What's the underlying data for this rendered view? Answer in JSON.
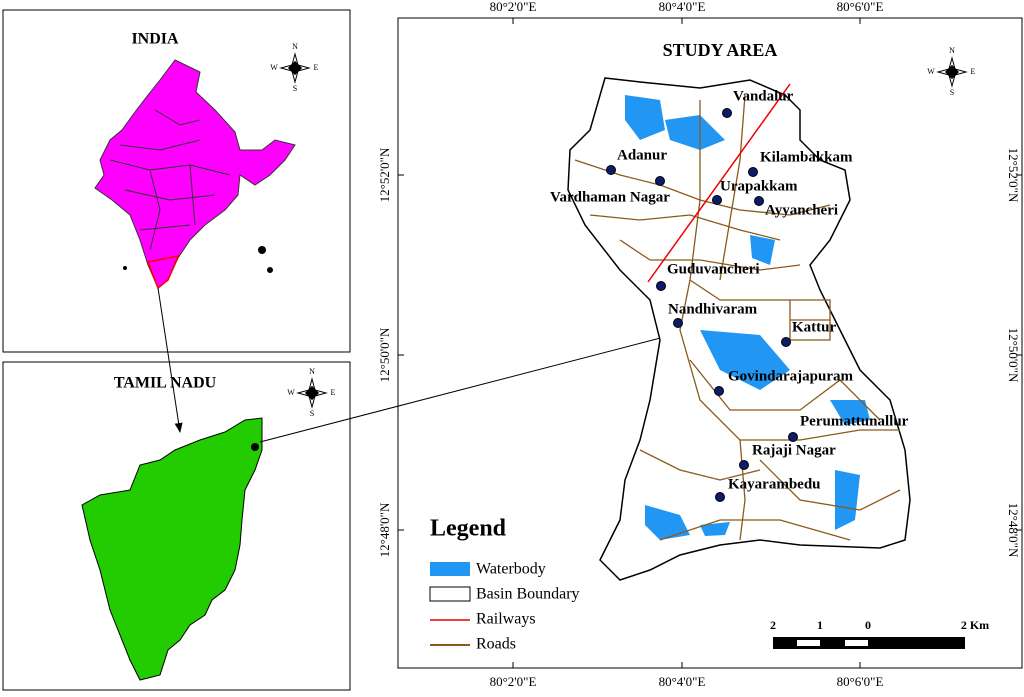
{
  "india_panel": {
    "title": "INDIA",
    "compass": {
      "n": "N",
      "e": "E",
      "s": "S",
      "w": "W"
    }
  },
  "tamil_nadu_panel": {
    "title": "TAMIL NADU",
    "compass": {
      "n": "N",
      "e": "E",
      "s": "S",
      "w": "W"
    }
  },
  "study_area": {
    "title": "STUDY AREA",
    "compass": {
      "n": "N",
      "e": "E",
      "s": "S",
      "w": "W"
    },
    "longitude_labels": [
      "80°2'0\"E",
      "80°4'0\"E",
      "80°6'0\"E"
    ],
    "latitude_labels": [
      "12°52'0\"N",
      "12°50'0\"N",
      "12°48'0\"N"
    ],
    "places": [
      "Vandalur",
      "Adanur",
      "Kilambakkam",
      "Urapakkam",
      "Vardhaman Nagar",
      "Ayyancheri",
      "Guduvancheri",
      "Nandhivaram",
      "Kattur",
      "Govindarajapuram",
      "Perumattunallur",
      "Rajaji Nagar",
      "Kayarambedu"
    ],
    "legend": {
      "title": "Legend",
      "items": [
        "Waterbody",
        "Basin Boundary",
        "Railways",
        "Roads"
      ]
    },
    "scale_bar": {
      "labels": [
        "2",
        "1",
        "0",
        "2 Km"
      ]
    }
  }
}
